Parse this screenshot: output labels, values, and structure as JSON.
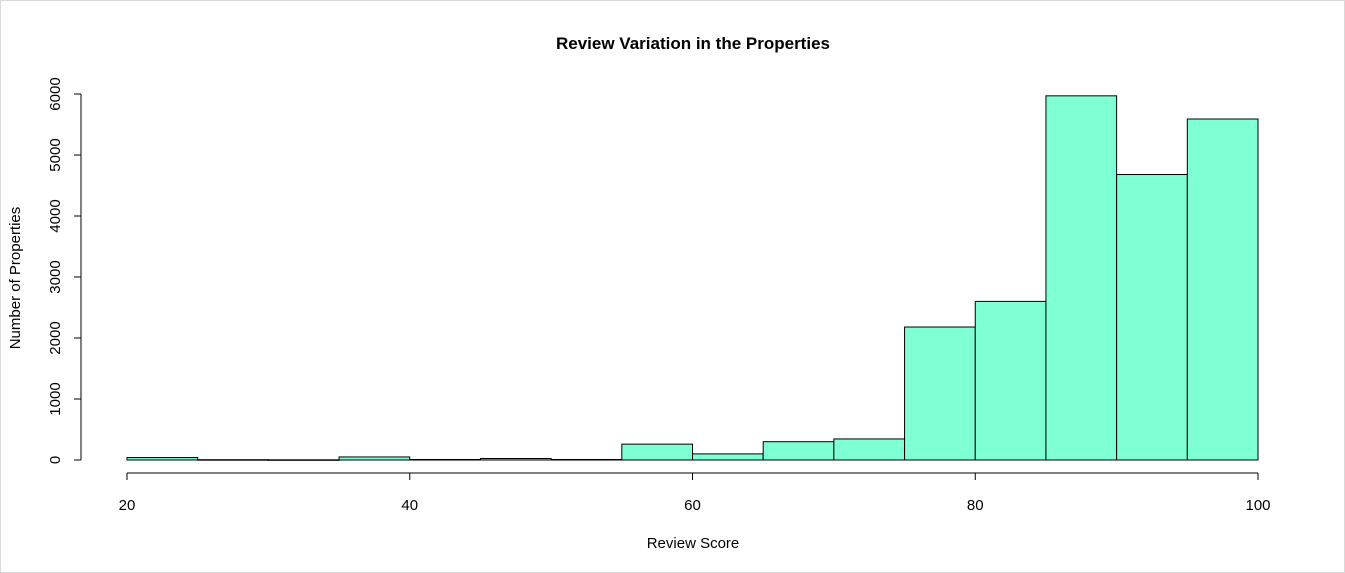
{
  "chart_data": {
    "type": "bar",
    "title": "Review Variation in the Properties",
    "xlabel": "Review Score",
    "ylabel": "Number of Properties",
    "bins": [
      {
        "x0": 20,
        "x1": 25,
        "count": 40
      },
      {
        "x0": 25,
        "x1": 30,
        "count": 5
      },
      {
        "x0": 30,
        "x1": 35,
        "count": 3
      },
      {
        "x0": 35,
        "x1": 40,
        "count": 50
      },
      {
        "x0": 40,
        "x1": 45,
        "count": 8
      },
      {
        "x0": 45,
        "x1": 50,
        "count": 25
      },
      {
        "x0": 50,
        "x1": 55,
        "count": 8
      },
      {
        "x0": 55,
        "x1": 60,
        "count": 260
      },
      {
        "x0": 60,
        "x1": 65,
        "count": 100
      },
      {
        "x0": 65,
        "x1": 70,
        "count": 300
      },
      {
        "x0": 70,
        "x1": 75,
        "count": 345
      },
      {
        "x0": 75,
        "x1": 80,
        "count": 2180
      },
      {
        "x0": 80,
        "x1": 85,
        "count": 2600
      },
      {
        "x0": 85,
        "x1": 90,
        "count": 5970
      },
      {
        "x0": 90,
        "x1": 95,
        "count": 4680
      },
      {
        "x0": 95,
        "x1": 100,
        "count": 5590
      }
    ],
    "xlim": [
      20,
      100
    ],
    "ylim": [
      0,
      6000
    ],
    "x_ticks": [
      20,
      40,
      60,
      80,
      100
    ],
    "y_ticks": [
      0,
      1000,
      2000,
      3000,
      4000,
      5000,
      6000
    ],
    "bar_color": "#7FFFD4",
    "grid": false,
    "legend": "none"
  }
}
